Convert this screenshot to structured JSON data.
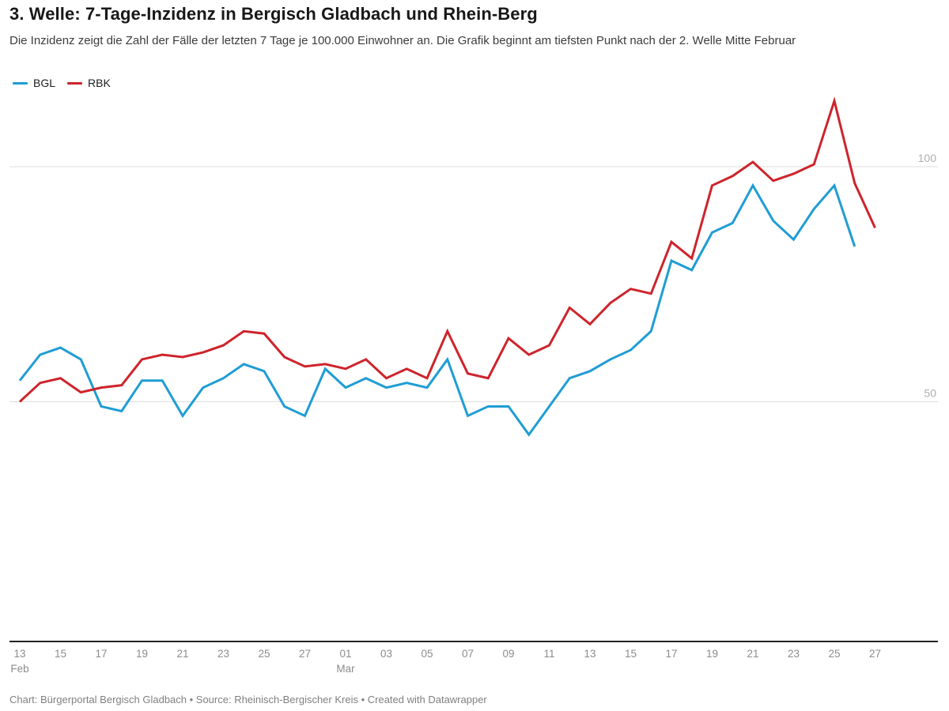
{
  "header": {
    "title": "3. Welle: 7-Tage-Inzidenz in Bergisch Gladbach und Rhein-Berg",
    "description": "Die Inzidenz zeigt die Zahl der Fälle der letzten 7 Tage je 100.000 Einwohner an. Die Grafik beginnt am tiefsten Punkt nach der 2. Welle Mitte Februar"
  },
  "legend": {
    "items": [
      {
        "label": "BGL",
        "color": "#1F9DD4"
      },
      {
        "label": "RBK",
        "color": "#CE242C"
      }
    ]
  },
  "chart_data": {
    "type": "line",
    "title": "3. Welle: 7-Tage-Inzidenz in Bergisch Gladbach und Rhein-Berg",
    "x_unit": "day",
    "x_range": [
      "13 Feb",
      "27 Mar"
    ],
    "ylim": [
      0,
      120
    ],
    "grid": "horizontal-only",
    "legend_position": "top-left",
    "x_axis": {
      "ticks": [
        {
          "day_index": 0,
          "label": "13",
          "month": "Feb"
        },
        {
          "day_index": 2,
          "label": "15"
        },
        {
          "day_index": 4,
          "label": "17"
        },
        {
          "day_index": 6,
          "label": "19"
        },
        {
          "day_index": 8,
          "label": "21"
        },
        {
          "day_index": 10,
          "label": "23"
        },
        {
          "day_index": 12,
          "label": "25"
        },
        {
          "day_index": 14,
          "label": "27"
        },
        {
          "day_index": 16,
          "label": "01",
          "month": "Mar"
        },
        {
          "day_index": 18,
          "label": "03"
        },
        {
          "day_index": 20,
          "label": "05"
        },
        {
          "day_index": 22,
          "label": "07"
        },
        {
          "day_index": 24,
          "label": "09"
        },
        {
          "day_index": 26,
          "label": "11"
        },
        {
          "day_index": 28,
          "label": "13"
        },
        {
          "day_index": 30,
          "label": "15"
        },
        {
          "day_index": 32,
          "label": "17"
        },
        {
          "day_index": 34,
          "label": "19"
        },
        {
          "day_index": 36,
          "label": "21"
        },
        {
          "day_index": 38,
          "label": "23"
        },
        {
          "day_index": 40,
          "label": "25"
        },
        {
          "day_index": 42,
          "label": "27"
        }
      ]
    },
    "y_axis": {
      "gridlines": [
        50,
        100
      ],
      "labels": [
        "50",
        "100"
      ]
    },
    "series": [
      {
        "name": "BGL",
        "color": "#1F9DD4",
        "start_day_index": 0,
        "first_date": "13 Feb",
        "last_date": "26 Mar",
        "values": [
          54.5,
          60,
          61.5,
          59,
          49,
          48,
          54.5,
          54.5,
          47,
          53,
          55,
          58,
          56.5,
          49,
          47,
          57,
          53,
          55,
          53,
          54,
          53,
          59,
          47,
          49,
          49,
          43,
          49,
          55,
          56.5,
          59,
          61,
          65,
          80,
          78,
          86,
          88,
          96,
          88.5,
          84.5,
          91,
          96,
          83
        ]
      },
      {
        "name": "RBK",
        "color": "#CE242C",
        "start_day_index": 0,
        "first_date": "13 Feb",
        "last_date": "27 Mar",
        "values": [
          50,
          54,
          55,
          52,
          53,
          53.5,
          59,
          60,
          59.5,
          60.5,
          62,
          65,
          64.5,
          59.5,
          57.5,
          58,
          57,
          59,
          55,
          57,
          55,
          65,
          56,
          55,
          63.5,
          60,
          62,
          70,
          66.5,
          71,
          74,
          73,
          84,
          80.5,
          96,
          98,
          101,
          97,
          98.5,
          100.5,
          114,
          96.5,
          87
        ]
      }
    ]
  },
  "footer": {
    "text": "Chart: Bürgerportal Bergisch Gladbach • Source: Rheinisch-Bergischer Kreis • Created with Datawrapper"
  }
}
